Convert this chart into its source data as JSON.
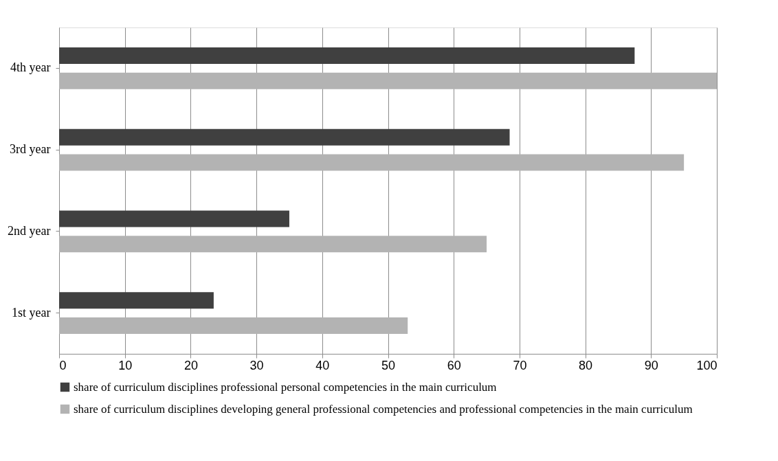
{
  "chart_data": {
    "type": "bar",
    "orientation": "horizontal",
    "categories": [
      "4th year",
      "3rd year",
      "2nd year",
      "1st year"
    ],
    "series": [
      {
        "name": "share of curriculum disciplines professional personal competencies in the main curriculum",
        "color": "#404040",
        "values": [
          87.5,
          68.5,
          35,
          23.5
        ]
      },
      {
        "name": "share of curriculum disciplines developing general professional competencies and professional competencies in the main curriculum",
        "color": "#b3b3b3",
        "values": [
          100,
          95,
          65,
          53
        ]
      }
    ],
    "xlim": [
      0,
      100
    ],
    "xticks": [
      0,
      10,
      20,
      30,
      40,
      50,
      60,
      70,
      80,
      90,
      100
    ],
    "grid": "x",
    "legend": "bottom"
  }
}
